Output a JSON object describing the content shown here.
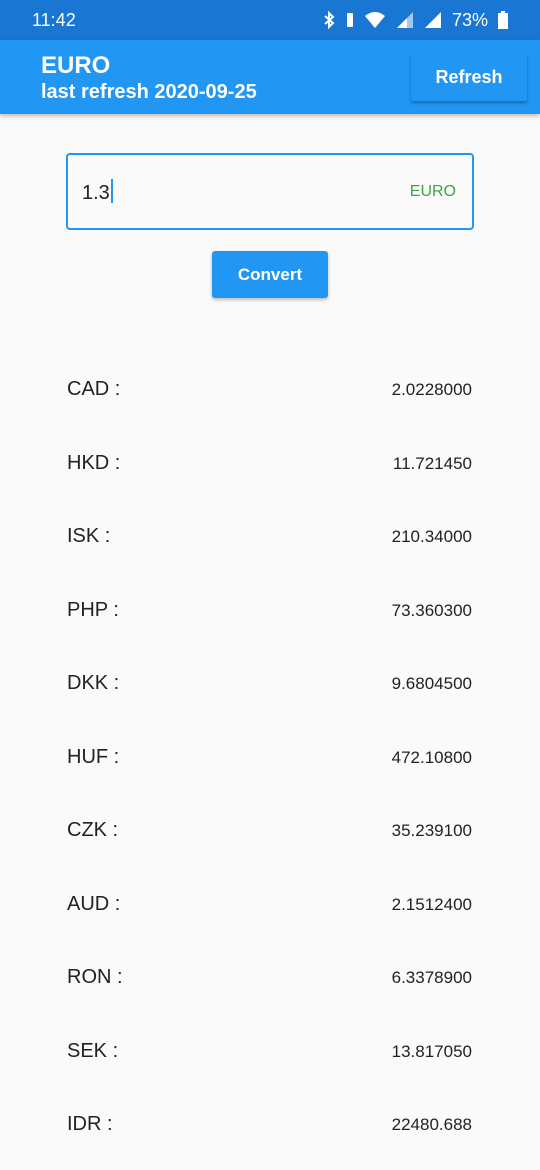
{
  "status_bar": {
    "time": "11:42",
    "battery": "73%",
    "icons": [
      "bluetooth-icon",
      "wifi-icon",
      "signal-icon",
      "battery-icon"
    ]
  },
  "appbar": {
    "title": "EURO",
    "subtitle": "last refresh 2020-09-25",
    "refresh_label": "Refresh",
    "color": "#2196f3"
  },
  "amount_input": {
    "value": "1.3",
    "suffix": "EURO",
    "border_color": "#2196f3",
    "suffix_color": "#43a047"
  },
  "convert_label": "Convert",
  "rates": [
    {
      "code": "CAD :",
      "value": "2.0228000"
    },
    {
      "code": "HKD :",
      "value": "11.721450"
    },
    {
      "code": "ISK :",
      "value": "210.34000"
    },
    {
      "code": "PHP :",
      "value": "73.360300"
    },
    {
      "code": "DKK :",
      "value": "9.6804500"
    },
    {
      "code": "HUF :",
      "value": "472.10800"
    },
    {
      "code": "CZK :",
      "value": "35.239100"
    },
    {
      "code": "AUD :",
      "value": "2.1512400"
    },
    {
      "code": "RON :",
      "value": "6.3378900"
    },
    {
      "code": "SEK :",
      "value": "13.817050"
    },
    {
      "code": "IDR :",
      "value": "22480.688"
    }
  ]
}
